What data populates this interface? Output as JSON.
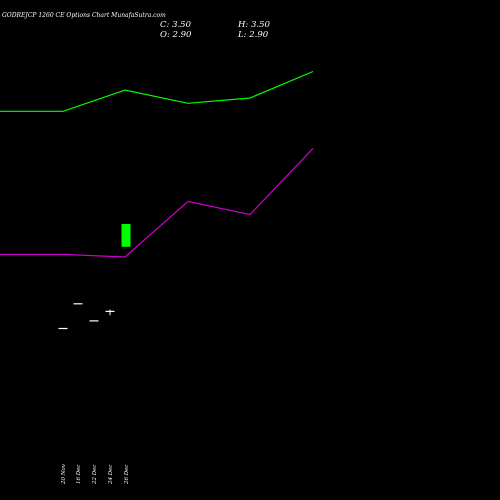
{
  "chart_data": {
    "type": "candlestick",
    "title": "GODREJCP 1260 CE Options Chart MunafaSutra.com",
    "ohlc": {
      "close_label": "C: 3.50",
      "high_label": "H: 3.50",
      "open_label": "O: 2.90",
      "low_label": "L: 2.90"
    },
    "x_labels": [
      "20 Nov",
      "16 Dec",
      "22 Dec",
      "24 Dec",
      "26 Dec"
    ],
    "candles": [
      {
        "x": "20 Nov",
        "open": 0.75,
        "high": 0.75,
        "low": 0.75,
        "close": 0.75
      },
      {
        "x": "16 Dec",
        "open": 1.4,
        "high": 1.4,
        "low": 1.4,
        "close": 1.4
      },
      {
        "x": "22 Dec",
        "open": 0.95,
        "high": 0.95,
        "low": 0.95,
        "close": 0.95
      },
      {
        "x": "24 Dec",
        "open": 1.2,
        "high": 1.25,
        "low": 1.1,
        "close": 1.2
      },
      {
        "x": "26 Dec",
        "open": 2.9,
        "high": 3.5,
        "low": 2.9,
        "close": 3.5
      }
    ],
    "series": [
      {
        "color": "#00ff00",
        "values": [
          15.8,
          15.8,
          16.6,
          16.1,
          16.3,
          17.3
        ]
      },
      {
        "color": "#cc00cc",
        "values": [
          10.4,
          10.4,
          10.3,
          12.4,
          11.9,
          14.4
        ]
      }
    ],
    "colors": {
      "background": "#000000",
      "text": "#ffffff",
      "up": "#00ff00",
      "down": "#ff0000",
      "neutral": "#ffffff"
    }
  }
}
